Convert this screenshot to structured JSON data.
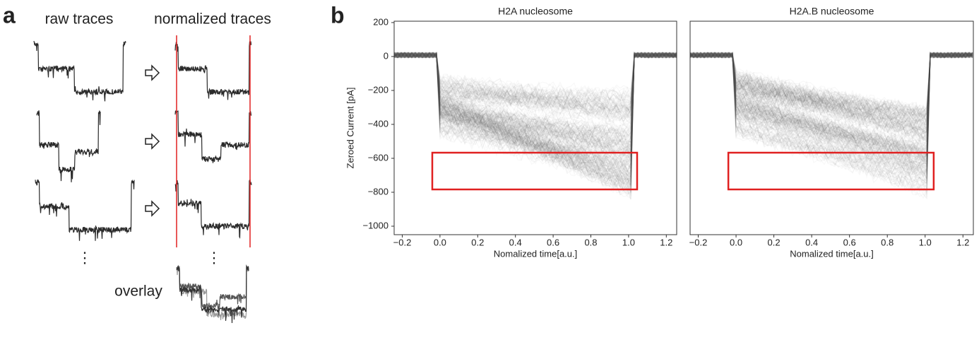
{
  "panel_a": {
    "label": "a",
    "raw_title": "raw traces",
    "norm_title": "normalized traces",
    "overlay_label": "overlay",
    "ellipsis": "⋮"
  },
  "panel_b_label": "b",
  "chart_data": [
    {
      "type": "line",
      "title": "H2A nucleosome",
      "xlabel": "Nomalized time[a.u.]",
      "ylabel": "Zeroed Current [pA]",
      "xlim": [
        -0.243,
        1.255
      ],
      "ylim": [
        -1050,
        208
      ],
      "xticks": [
        {
          "value": -0.2,
          "label": "−0.2"
        },
        {
          "value": 0,
          "label": "0.0"
        },
        0.2,
        0.4,
        0.6,
        0.8,
        {
          "value": 1,
          "label": "1.0"
        },
        1.2
      ],
      "yticks": [
        200,
        0,
        {
          "value": -200,
          "label": "−200"
        },
        {
          "value": -400,
          "label": "−400"
        },
        {
          "value": -600,
          "label": "−600"
        },
        {
          "value": -800,
          "label": "−800"
        },
        {
          "value": -1000,
          "label": "−1000"
        }
      ]
    },
    {
      "type": "line",
      "title": "H2A.B nucleosome",
      "xlabel": "Nomalized time[a.u.]",
      "xlim": [
        -0.243,
        1.255
      ],
      "ylim": [
        -1050,
        208
      ],
      "xticks": [
        {
          "value": -0.2,
          "label": "−0.2"
        },
        {
          "value": 0,
          "label": "0.0"
        },
        0.2,
        0.4,
        0.6,
        0.8,
        {
          "value": 1,
          "label": "1.0"
        },
        1.2
      ]
    }
  ]
}
